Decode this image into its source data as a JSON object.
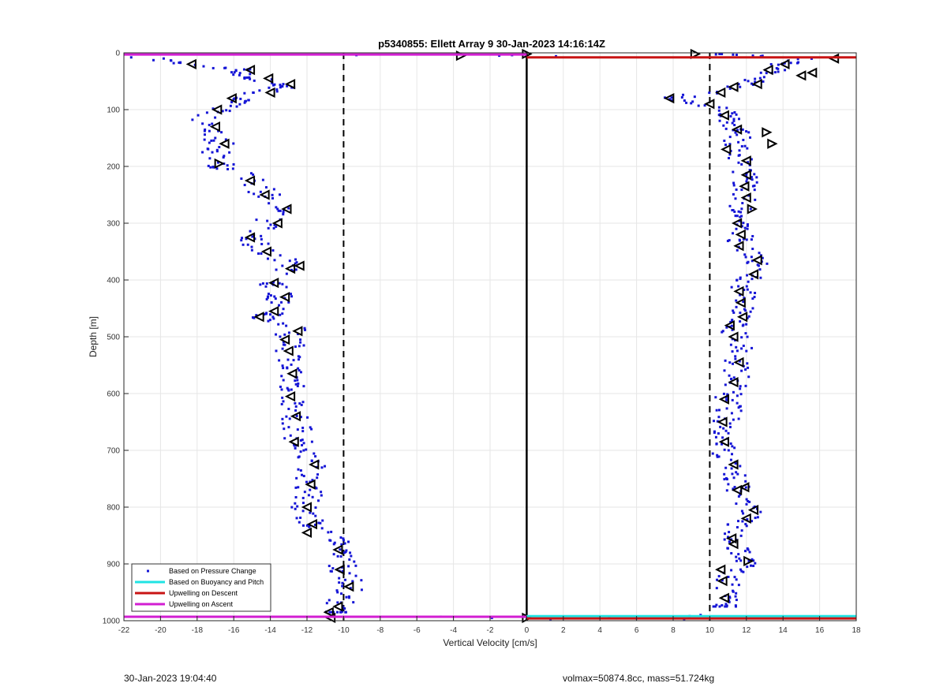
{
  "footer": {
    "left": "30-Jan-2023 19:04:40",
    "right": "volmax=50874.8cc, mass=51.724kg"
  },
  "colors": {
    "pressure_points": "#1515d6",
    "buoyancy": "#1fe3e3",
    "upwelling_descent": "#c81414",
    "upwelling_ascent": "#d21ed2",
    "markers": "#000000",
    "grid": "#e6e6e6"
  },
  "chart_data": {
    "type": "scatter",
    "title": "p5340855: Ellett Array 9 30-Jan-2023 14:16:14Z",
    "xlabel": "Vertical Velocity [cm/s]",
    "ylabel": "Depth [m]",
    "xlim": [
      -22,
      18
    ],
    "ylim": [
      0,
      1000
    ],
    "y_reversed": true,
    "grid": true,
    "x_ticks": [
      -22,
      -20,
      -18,
      -16,
      -14,
      -12,
      -10,
      -8,
      -6,
      -4,
      -2,
      0,
      2,
      4,
      6,
      8,
      10,
      12,
      14,
      16,
      18
    ],
    "y_ticks": [
      0,
      100,
      200,
      300,
      400,
      500,
      600,
      700,
      800,
      900,
      1000
    ],
    "legend_position": "bottom-left",
    "legend": [
      {
        "label": "Based on Pressure Change",
        "kind": "point",
        "color": "#1515d6"
      },
      {
        "label": "Based on Buoyancy and Pitch",
        "kind": "line",
        "color": "#1fe3e3"
      },
      {
        "label": "Upwelling on Descent",
        "kind": "line",
        "color": "#c81414"
      },
      {
        "label": "Upwelling on Ascent",
        "kind": "line",
        "color": "#d21ed2"
      }
    ],
    "reference_lines": [
      {
        "x": 0,
        "style": "solid"
      },
      {
        "x": -10,
        "style": "dashed"
      },
      {
        "x": 10,
        "style": "dashed"
      }
    ],
    "upwelling_ascent": {
      "depths": [
        3,
        993
      ],
      "x_range": [
        -22,
        0
      ]
    },
    "upwelling_descent": {
      "depths": [
        8,
        996
      ],
      "x_range": [
        0,
        18
      ]
    },
    "buoyancy_line": {
      "depth": 992,
      "x_range": [
        0,
        18
      ]
    },
    "ascent_profile": [
      [
        10,
        -20.5
      ],
      [
        20,
        -18.5
      ],
      [
        30,
        -15.5
      ],
      [
        40,
        -15.8
      ],
      [
        50,
        -14.0
      ],
      [
        60,
        -13.2
      ],
      [
        70,
        -14.5
      ],
      [
        85,
        -16.0
      ],
      [
        100,
        -16.8
      ],
      [
        120,
        -17.6
      ],
      [
        140,
        -17.4
      ],
      [
        160,
        -16.8
      ],
      [
        180,
        -17.0
      ],
      [
        200,
        -16.6
      ],
      [
        220,
        -15.2
      ],
      [
        245,
        -14.4
      ],
      [
        265,
        -13.4
      ],
      [
        285,
        -13.8
      ],
      [
        310,
        -14.6
      ],
      [
        330,
        -15.0
      ],
      [
        350,
        -14.3
      ],
      [
        370,
        -12.8
      ],
      [
        390,
        -13.2
      ],
      [
        410,
        -13.9
      ],
      [
        430,
        -13.4
      ],
      [
        450,
        -13.6
      ],
      [
        465,
        -14.4
      ],
      [
        480,
        -12.6
      ],
      [
        500,
        -13.0
      ],
      [
        520,
        -12.9
      ],
      [
        545,
        -13.0
      ],
      [
        565,
        -12.8
      ],
      [
        585,
        -12.7
      ],
      [
        605,
        -12.9
      ],
      [
        625,
        -12.7
      ],
      [
        645,
        -12.6
      ],
      [
        670,
        -12.5
      ],
      [
        690,
        -12.4
      ],
      [
        710,
        -12.1
      ],
      [
        730,
        -11.7
      ],
      [
        750,
        -11.9
      ],
      [
        770,
        -11.8
      ],
      [
        790,
        -12.2
      ],
      [
        810,
        -11.9
      ],
      [
        830,
        -11.6
      ],
      [
        850,
        -11.1
      ],
      [
        865,
        -10.2
      ],
      [
        885,
        -10.0
      ],
      [
        905,
        -10.0
      ],
      [
        925,
        -9.8
      ],
      [
        945,
        -9.7
      ],
      [
        965,
        -10.1
      ],
      [
        985,
        -10.4
      ]
    ],
    "descent_profile": [
      [
        2,
        10.5
      ],
      [
        10,
        15.5
      ],
      [
        20,
        14.0
      ],
      [
        35,
        13.2
      ],
      [
        50,
        12.5
      ],
      [
        65,
        11.0
      ],
      [
        80,
        8.0
      ],
      [
        95,
        10.3
      ],
      [
        110,
        11.2
      ],
      [
        125,
        10.7
      ],
      [
        140,
        11.8
      ],
      [
        160,
        11.2
      ],
      [
        180,
        11.6
      ],
      [
        200,
        11.9
      ],
      [
        220,
        12.0
      ],
      [
        240,
        11.9
      ],
      [
        260,
        11.8
      ],
      [
        280,
        11.7
      ],
      [
        300,
        11.6
      ],
      [
        320,
        11.8
      ],
      [
        340,
        11.6
      ],
      [
        360,
        12.4
      ],
      [
        380,
        12.5
      ],
      [
        400,
        12.0
      ],
      [
        420,
        11.8
      ],
      [
        440,
        11.9
      ],
      [
        460,
        11.8
      ],
      [
        480,
        11.3
      ],
      [
        500,
        11.4
      ],
      [
        520,
        11.6
      ],
      [
        545,
        11.5
      ],
      [
        565,
        11.5
      ],
      [
        585,
        11.4
      ],
      [
        605,
        11.0
      ],
      [
        625,
        11.1
      ],
      [
        645,
        10.9
      ],
      [
        665,
        10.8
      ],
      [
        685,
        10.8
      ],
      [
        705,
        10.7
      ],
      [
        725,
        11.1
      ],
      [
        745,
        11.3
      ],
      [
        765,
        11.6
      ],
      [
        785,
        11.7
      ],
      [
        805,
        12.2
      ],
      [
        825,
        11.8
      ],
      [
        845,
        11.2
      ],
      [
        865,
        11.3
      ],
      [
        885,
        11.6
      ],
      [
        900,
        12.1
      ],
      [
        920,
        10.9
      ],
      [
        940,
        11.0
      ],
      [
        960,
        10.8
      ],
      [
        975,
        10.9
      ]
    ],
    "markers": [
      [
        20,
        -18.3,
        "L"
      ],
      [
        30,
        -15.1,
        "L"
      ],
      [
        45,
        -14.1,
        "L"
      ],
      [
        55,
        -12.9,
        "L"
      ],
      [
        70,
        -14.0,
        "L"
      ],
      [
        80,
        -16.1,
        "L"
      ],
      [
        100,
        -16.9,
        "L"
      ],
      [
        130,
        -17.0,
        "L"
      ],
      [
        160,
        -16.5,
        "L"
      ],
      [
        195,
        -16.8,
        "R"
      ],
      [
        225,
        -15.1,
        "L"
      ],
      [
        250,
        -14.3,
        "L"
      ],
      [
        275,
        -13.1,
        "L"
      ],
      [
        300,
        -13.6,
        "L"
      ],
      [
        325,
        -15.1,
        "L"
      ],
      [
        350,
        -14.2,
        "L"
      ],
      [
        375,
        -12.4,
        "L"
      ],
      [
        380,
        -12.9,
        "L"
      ],
      [
        405,
        -13.8,
        "L"
      ],
      [
        430,
        -13.2,
        "L"
      ],
      [
        455,
        -13.8,
        "L"
      ],
      [
        465,
        -14.6,
        "L"
      ],
      [
        490,
        -12.5,
        "L"
      ],
      [
        505,
        -13.2,
        "L"
      ],
      [
        525,
        -13.0,
        "L"
      ],
      [
        565,
        -12.8,
        "L"
      ],
      [
        605,
        -12.9,
        "L"
      ],
      [
        640,
        -12.6,
        "L"
      ],
      [
        685,
        -12.7,
        "L"
      ],
      [
        725,
        -11.6,
        "L"
      ],
      [
        760,
        -11.8,
        "L"
      ],
      [
        800,
        -12.0,
        "L"
      ],
      [
        830,
        -11.7,
        "L"
      ],
      [
        845,
        -12.0,
        "L"
      ],
      [
        875,
        -10.3,
        "L"
      ],
      [
        910,
        -10.2,
        "L"
      ],
      [
        940,
        -9.7,
        "L"
      ],
      [
        975,
        -10.3,
        "L"
      ],
      [
        985,
        -10.8,
        "L"
      ],
      [
        995,
        -10.7,
        "L"
      ],
      [
        5,
        -3.6,
        "R"
      ],
      [
        2,
        0.0,
        "R"
      ],
      [
        2,
        9.2,
        "R"
      ],
      [
        10,
        16.8,
        "L"
      ],
      [
        20,
        14.1,
        "L"
      ],
      [
        30,
        13.2,
        "L"
      ],
      [
        35,
        15.6,
        "L"
      ],
      [
        40,
        15.0,
        "L"
      ],
      [
        55,
        12.6,
        "L"
      ],
      [
        60,
        11.3,
        "L"
      ],
      [
        70,
        10.6,
        "L"
      ],
      [
        80,
        7.8,
        "L"
      ],
      [
        90,
        10.0,
        "L"
      ],
      [
        110,
        10.8,
        "L"
      ],
      [
        135,
        11.5,
        "L"
      ],
      [
        140,
        13.1,
        "R"
      ],
      [
        160,
        13.4,
        "R"
      ],
      [
        170,
        10.9,
        "L"
      ],
      [
        190,
        12.0,
        "L"
      ],
      [
        215,
        12.0,
        "L"
      ],
      [
        235,
        11.9,
        "L"
      ],
      [
        255,
        12.0,
        "L"
      ],
      [
        275,
        12.3,
        "R"
      ],
      [
        300,
        11.5,
        "L"
      ],
      [
        320,
        11.7,
        "L"
      ],
      [
        340,
        11.6,
        "L"
      ],
      [
        365,
        12.6,
        "L"
      ],
      [
        390,
        12.4,
        "L"
      ],
      [
        420,
        11.6,
        "L"
      ],
      [
        440,
        11.7,
        "L"
      ],
      [
        465,
        11.8,
        "L"
      ],
      [
        480,
        11.1,
        "L"
      ],
      [
        500,
        11.3,
        "L"
      ],
      [
        545,
        11.6,
        "L"
      ],
      [
        580,
        11.3,
        "L"
      ],
      [
        610,
        10.8,
        "L"
      ],
      [
        650,
        10.7,
        "L"
      ],
      [
        685,
        10.8,
        "L"
      ],
      [
        725,
        11.3,
        "L"
      ],
      [
        765,
        11.9,
        "L"
      ],
      [
        770,
        11.5,
        "L"
      ],
      [
        805,
        12.4,
        "L"
      ],
      [
        820,
        12.0,
        "L"
      ],
      [
        855,
        11.2,
        "L"
      ],
      [
        865,
        11.3,
        "L"
      ],
      [
        895,
        12.1,
        "R"
      ],
      [
        910,
        10.6,
        "L"
      ],
      [
        930,
        10.7,
        "L"
      ],
      [
        960,
        10.8,
        "L"
      ],
      [
        995,
        0.0,
        "R"
      ]
    ]
  }
}
